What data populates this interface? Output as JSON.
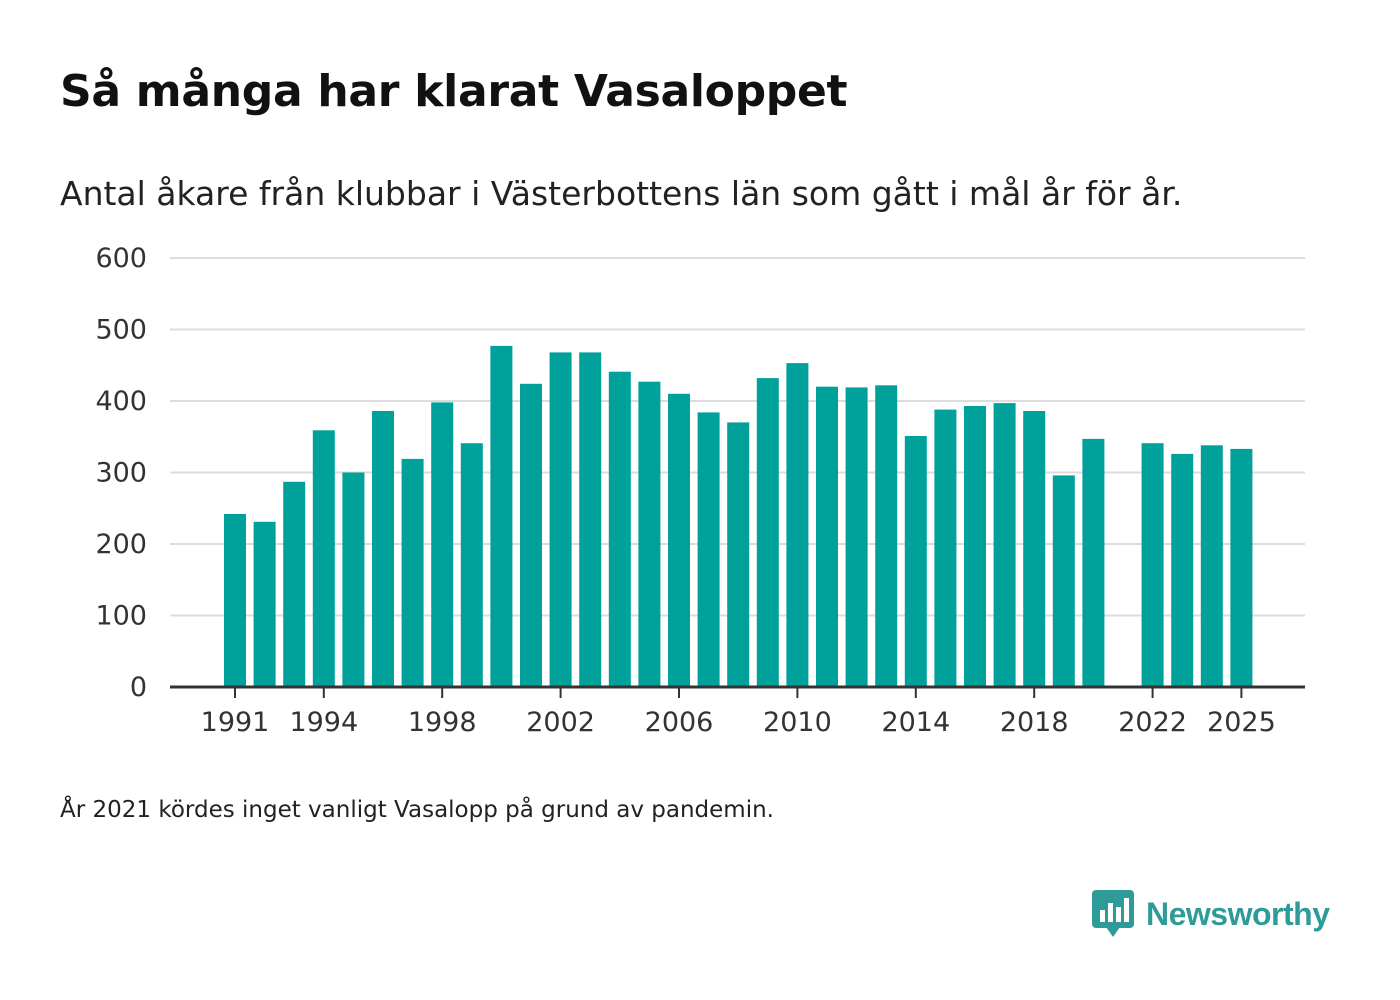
{
  "chart_data": {
    "type": "bar",
    "title": "Så många har klarat Vasaloppet",
    "subtitle": "Antal åkare från klubbar i Västerbottens län som gått i mål år för år.",
    "categories": [
      1991,
      1992,
      1993,
      1994,
      1995,
      1996,
      1997,
      1998,
      1999,
      2000,
      2001,
      2002,
      2003,
      2004,
      2005,
      2006,
      2007,
      2008,
      2009,
      2010,
      2011,
      2012,
      2013,
      2014,
      2015,
      2016,
      2017,
      2018,
      2019,
      2020,
      2021,
      2022,
      2023,
      2024,
      2025
    ],
    "values": [
      242,
      231,
      287,
      359,
      300,
      386,
      319,
      398,
      341,
      477,
      424,
      468,
      468,
      441,
      427,
      410,
      384,
      370,
      432,
      453,
      420,
      419,
      422,
      351,
      388,
      393,
      397,
      386,
      296,
      347,
      null,
      341,
      326,
      338,
      333
    ],
    "x_tick_labels": [
      1991,
      1994,
      1998,
      2002,
      2006,
      2010,
      2014,
      2018,
      2022,
      2025
    ],
    "ylim": [
      0,
      600
    ],
    "y_ticks": [
      0,
      100,
      200,
      300,
      400,
      500,
      600
    ],
    "xlabel": "",
    "ylabel": "",
    "color": "#00a19a",
    "grid": true
  },
  "note": "År 2021 kördes inget vanligt Vasalopp på grund av pandemin.",
  "brand": {
    "name": "Newsworthy",
    "icon": "newsworthy-logo-icon",
    "color": "#2f9b98"
  }
}
